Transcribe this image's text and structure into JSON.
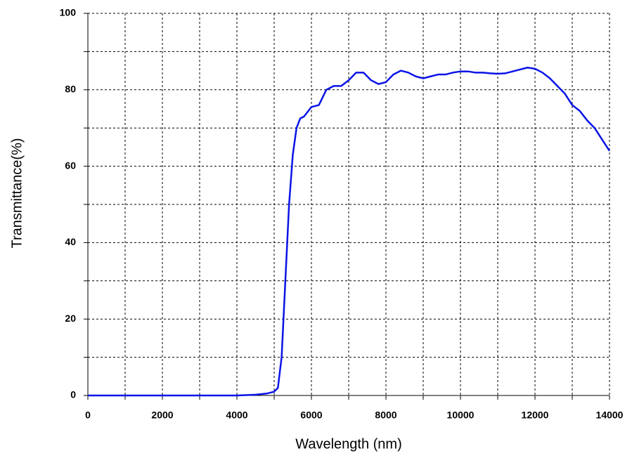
{
  "chart_data": {
    "type": "line",
    "xlabel": "Wavelength (nm)",
    "ylabel": "Transmittance(%)",
    "x": [
      0,
      1000,
      2000,
      3000,
      4000,
      4500,
      4800,
      5000,
      5100,
      5200,
      5300,
      5400,
      5500,
      5600,
      5700,
      5800,
      6000,
      6200,
      6400,
      6600,
      6800,
      7000,
      7200,
      7400,
      7600,
      7800,
      8000,
      8200,
      8400,
      8600,
      8800,
      9000,
      9200,
      9400,
      9600,
      9800,
      10000,
      10200,
      10400,
      10600,
      10800,
      11000,
      11200,
      11400,
      11600,
      11800,
      12000,
      12200,
      12400,
      12600,
      12800,
      13000,
      13200,
      13400,
      13600,
      13800,
      14000
    ],
    "series": [
      {
        "name": "Transmittance",
        "color": "#0a14e6",
        "values": [
          0,
          0,
          0,
          0,
          0,
          0.2,
          0.5,
          1,
          2,
          10,
          30,
          50,
          63,
          70,
          72.5,
          73,
          75.5,
          76,
          80,
          81,
          81,
          82.5,
          84.5,
          84.5,
          82.5,
          81.5,
          82,
          84,
          85,
          84.5,
          83.5,
          83,
          83.5,
          84,
          84,
          84.5,
          84.8,
          84.8,
          84.5,
          84.5,
          84.3,
          84.2,
          84.3,
          84.8,
          85.3,
          85.8,
          85.5,
          84.5,
          83,
          81,
          79,
          76,
          74.5,
          72,
          70,
          67,
          64
        ]
      }
    ],
    "xlim": [
      0,
      14000
    ],
    "xticks": [
      0,
      2000,
      4000,
      6000,
      8000,
      10000,
      12000,
      14000
    ],
    "xminorticks": [
      1000,
      3000,
      5000,
      7000,
      9000,
      11000,
      13000
    ],
    "ylim": [
      0,
      100
    ],
    "yticks": [
      0,
      20,
      40,
      60,
      80,
      100
    ],
    "yminorticks": [
      10,
      30,
      50,
      70,
      90
    ],
    "grid": true
  }
}
